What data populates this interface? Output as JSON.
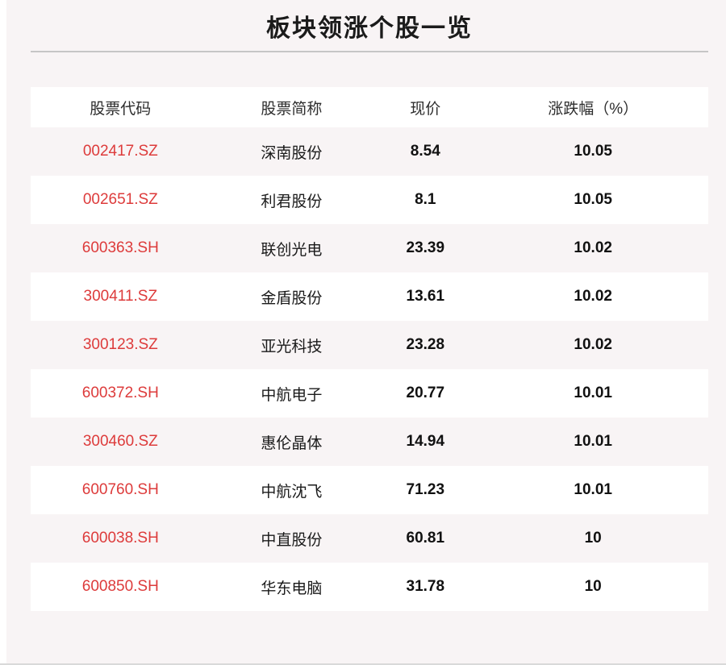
{
  "page": {
    "title": "板块领涨个股一览",
    "colors": {
      "background_pink": "#f8f4f5",
      "row_white": "#ffffff",
      "code_red": "#dd3b3b",
      "divider_gray": "#c6c6c6"
    }
  },
  "table": {
    "columns": [
      "股票代码",
      "股票简称",
      "现价",
      "涨跌幅（%）"
    ],
    "rows": [
      {
        "code": "002417.SZ",
        "name": "深南股份",
        "price": "8.54",
        "change": "10.05"
      },
      {
        "code": "002651.SZ",
        "name": "利君股份",
        "price": "8.1",
        "change": "10.05"
      },
      {
        "code": "600363.SH",
        "name": "联创光电",
        "price": "23.39",
        "change": "10.02"
      },
      {
        "code": "300411.SZ",
        "name": "金盾股份",
        "price": "13.61",
        "change": "10.02"
      },
      {
        "code": "300123.SZ",
        "name": "亚光科技",
        "price": "23.28",
        "change": "10.02"
      },
      {
        "code": "600372.SH",
        "name": "中航电子",
        "price": "20.77",
        "change": "10.01"
      },
      {
        "code": "300460.SZ",
        "name": "惠伦晶体",
        "price": "14.94",
        "change": "10.01"
      },
      {
        "code": "600760.SH",
        "name": "中航沈飞",
        "price": "71.23",
        "change": "10.01"
      },
      {
        "code": "600038.SH",
        "name": "中直股份",
        "price": "60.81",
        "change": "10"
      },
      {
        "code": "600850.SH",
        "name": "华东电脑",
        "price": "31.78",
        "change": "10"
      }
    ]
  }
}
